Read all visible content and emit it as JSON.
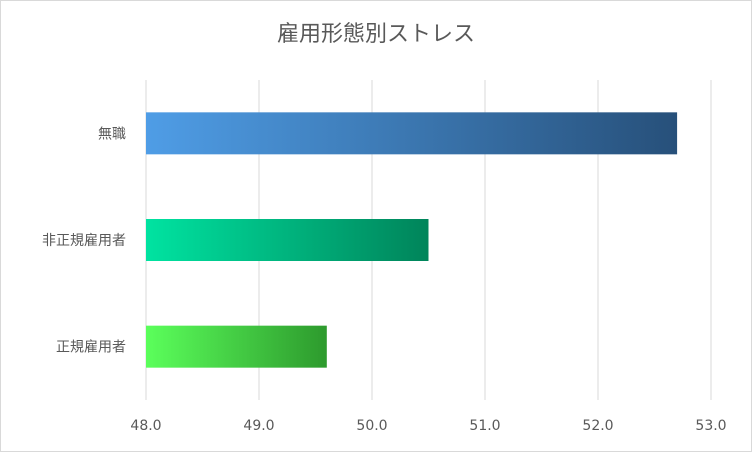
{
  "chart_data": {
    "type": "bar",
    "orientation": "horizontal",
    "title": "雇用形態別ストレス",
    "categories": [
      "無職",
      "非正規雇用者",
      "正規雇用者"
    ],
    "values": [
      52.7,
      50.5,
      49.6
    ],
    "xlim": [
      48.0,
      53.0
    ],
    "xticks": [
      "48.0",
      "49.0",
      "50.0",
      "51.0",
      "52.0",
      "53.0"
    ],
    "xlabel": "",
    "ylabel": "",
    "grid": "vertical",
    "legend": "none",
    "bar_colors": [
      {
        "from": "#4f9de6",
        "to": "#27507a"
      },
      {
        "from": "#00e3a1",
        "to": "#00845a"
      },
      {
        "from": "#5bff5b",
        "to": "#2d9a2d"
      }
    ]
  }
}
